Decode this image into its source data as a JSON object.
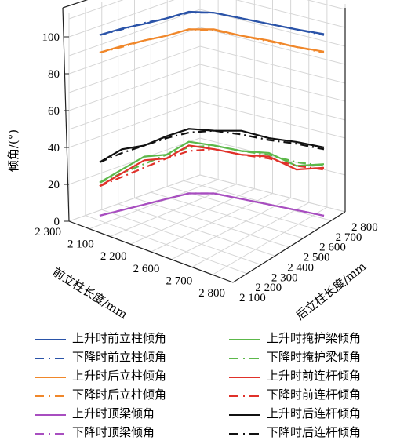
{
  "chart_data": {
    "type": "line3d",
    "zlabel": "倾角/(°)",
    "xlabel": "前立柱长度/mm",
    "ylabel": "后立柱长度/mm",
    "zticks": [
      "0",
      "20",
      "40",
      "60",
      "80",
      "100"
    ],
    "xticks": [
      "2 300",
      "2 100",
      "2 200",
      "2 600",
      "2 700",
      "2 800"
    ],
    "yticks": [
      "2 100",
      "2 200",
      "2 300",
      "2 400",
      "2 500",
      "2 600",
      "2 700",
      "2 800"
    ],
    "zlim": [
      0,
      100
    ],
    "grid": true,
    "steps": 9,
    "series": [
      {
        "name": "上升时前立柱倾角",
        "color": "#2a53a8",
        "dash": "solid",
        "values": [
          101,
          101.5,
          101,
          101,
          101.5,
          101,
          101,
          101,
          101,
          101.5
        ]
      },
      {
        "name": "下降时前立柱倾角",
        "color": "#2a53a8",
        "dash": "dashdot",
        "values": [
          101,
          101,
          101.5,
          101,
          101,
          101,
          101,
          101,
          101,
          101
        ]
      },
      {
        "name": "上升时后立柱倾角",
        "color": "#f0872a",
        "dash": "solid",
        "values": [
          91.5,
          92,
          92,
          91.5,
          92,
          92,
          91.5,
          92,
          91.5,
          92
        ]
      },
      {
        "name": "下降时后立柱倾角",
        "color": "#f0872a",
        "dash": "dashdot",
        "values": [
          91.5,
          91.5,
          92,
          91.5,
          92,
          91.5,
          91.5,
          91.5,
          91.5,
          91.5
        ]
      },
      {
        "name": "上升时顶梁倾角",
        "color": "#a84ec0",
        "dash": "solid",
        "values": [
          3,
          3,
          3,
          3,
          3,
          3,
          3,
          3,
          3,
          3
        ]
      },
      {
        "name": "下降时顶梁倾角",
        "color": "#a84ec0",
        "dash": "dashdot",
        "values": [
          3,
          3,
          3,
          3,
          3,
          3,
          3,
          3,
          3,
          3
        ]
      },
      {
        "name": "上升时掩护梁倾角",
        "color": "#5cb84a",
        "dash": "solid",
        "values": [
          21,
          25,
          29,
          27,
          31,
          29,
          29,
          31,
          27,
          31
        ]
      },
      {
        "name": "下降时掩护梁倾角",
        "color": "#5cb84a",
        "dash": "dashdot",
        "values": [
          21,
          23,
          25,
          27,
          28,
          29,
          29,
          30,
          29,
          30
        ]
      },
      {
        "name": "上升时前连杆倾角",
        "color": "#e0312a",
        "dash": "solid",
        "values": [
          19,
          23,
          27,
          25,
          29,
          27,
          27,
          29,
          25,
          29
        ]
      },
      {
        "name": "下降时前连杆倾角",
        "color": "#e0312a",
        "dash": "dashdot",
        "values": [
          19,
          21,
          23,
          25,
          26,
          27,
          27,
          28,
          27,
          28
        ]
      },
      {
        "name": "上升时后连杆倾角",
        "color": "#111111",
        "dash": "solid",
        "values": [
          32,
          36,
          35,
          37,
          38,
          37,
          40,
          39,
          40,
          40
        ]
      },
      {
        "name": "下降时后连杆倾角",
        "color": "#111111",
        "dash": "dashdot",
        "values": [
          32,
          34,
          35,
          36,
          36,
          37,
          38,
          38,
          39,
          39
        ]
      }
    ]
  }
}
